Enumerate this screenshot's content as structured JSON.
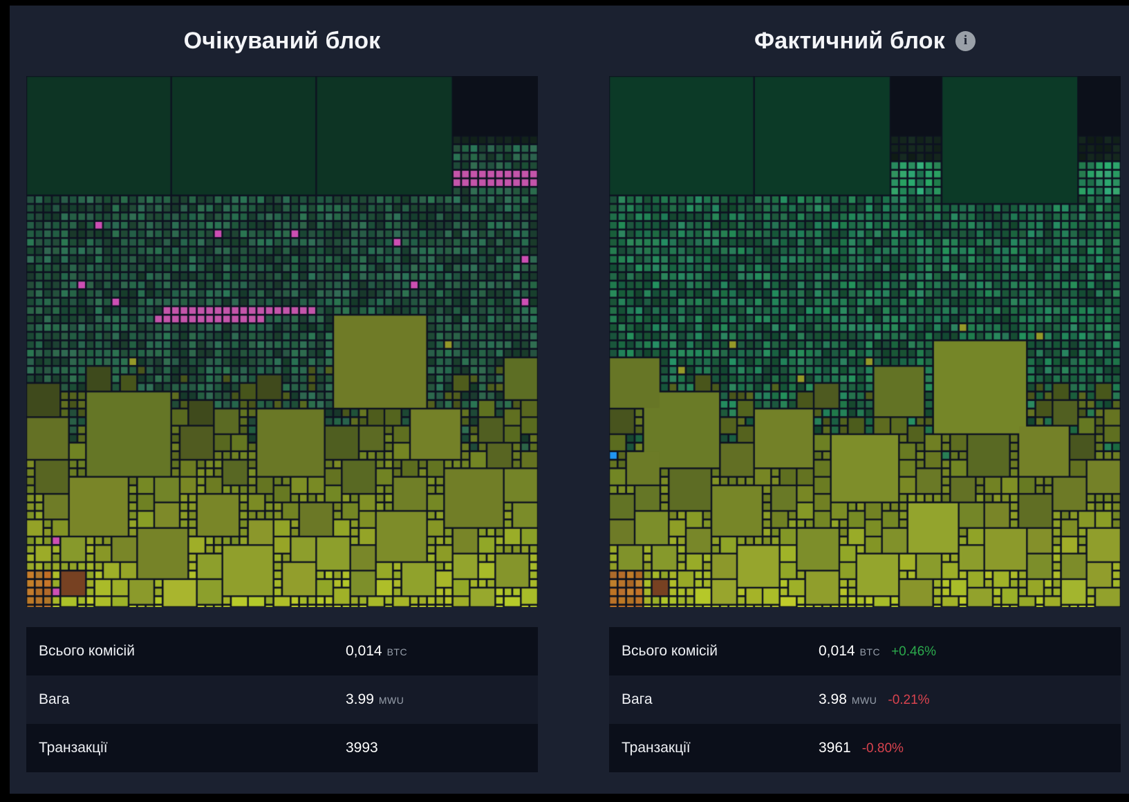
{
  "page": {
    "outer_bg": "#000000",
    "panel_bg": "#1b2130"
  },
  "columns": [
    {
      "title": "Очікуваний блок",
      "show_info_icon": false,
      "stats": [
        {
          "label": "Всього комісій",
          "value": "0,014",
          "unit": "BTC",
          "delta": "",
          "delta_color": ""
        },
        {
          "label": "Вага",
          "value": "3.99",
          "unit": "MWU",
          "delta": "",
          "delta_color": ""
        },
        {
          "label": "Транзакції",
          "value": "3993",
          "unit": "",
          "delta": "",
          "delta_color": ""
        }
      ],
      "treemap": {
        "seed": 1337,
        "gap_color": "#0d1220",
        "black_color": "#0c101a",
        "big_block_color": "#0d3424",
        "pink": "#c455aa",
        "accent_color": "#cd4fb4",
        "accent_p": 0.007,
        "teal": {
          "h": 153,
          "s": 42,
          "l_min": 15,
          "l_var": 17
        },
        "bands": {
          "teal_start": 14,
          "trans_start": 34,
          "olive_start": 45
        },
        "top": {
          "blocks": [
            {
              "c": 0,
              "r": 0,
              "cw": 17,
              "rh": 14
            },
            {
              "c": 17,
              "r": 0,
              "cw": 17,
              "rh": 14
            },
            {
              "c": 34,
              "r": 0,
              "cw": 16,
              "rh": 14
            }
          ],
          "black": [
            {
              "c": 50,
              "r": 0,
              "cw": 10,
              "rh": 7
            }
          ],
          "zones": [
            {
              "c": 50,
              "r": 7,
              "cw": 10,
              "rh": 7,
              "dim": 1,
              "bright": false,
              "pink_rows": [
                11,
                12
              ]
            }
          ]
        },
        "olive_blocks": [
          [
            36,
            28,
            11,
            0.45
          ],
          [
            7,
            37,
            10,
            0.4
          ],
          [
            27,
            39,
            8,
            0.42
          ],
          [
            45,
            39,
            6,
            0.5
          ],
          [
            56,
            33,
            5,
            0.33
          ],
          [
            0,
            40,
            5,
            0.36
          ],
          [
            49,
            46,
            7,
            0.48
          ],
          [
            20,
            49,
            5,
            0.55
          ],
          [
            41,
            51,
            6,
            0.6
          ],
          [
            13,
            53,
            6,
            0.52
          ],
          [
            57,
            50,
            3,
            0.6
          ],
          [
            30,
            57,
            4,
            0.75
          ],
          [
            55,
            56,
            4,
            0.68
          ]
        ],
        "pink_runs": [
          {
            "c": 16,
            "r": 27,
            "len": 18
          },
          {
            "c": 15,
            "r": 28,
            "len": 13
          }
        ],
        "teal_singles": [
          [
            8,
            17
          ],
          [
            22,
            18
          ],
          [
            31,
            18
          ],
          [
            43,
            19
          ],
          [
            58,
            21
          ],
          [
            6,
            24
          ],
          [
            45,
            24
          ],
          [
            10,
            26
          ],
          [
            58,
            26
          ]
        ],
        "teal_singles_color": "#cd4fb4",
        "yellow_singles": [
          [
            49,
            31
          ],
          [
            12,
            33
          ],
          [
            39,
            35
          ],
          [
            57,
            36
          ]
        ],
        "orange": {
          "cells": {
            "c0": 0,
            "c1": 2,
            "r0": 58,
            "r1": 62
          },
          "brown": {
            "c": 4,
            "r": 58,
            "n": 3
          }
        }
      }
    },
    {
      "title": "Фактичний блок",
      "show_info_icon": true,
      "info_icon_glyph": "i",
      "stats": [
        {
          "label": "Всього комісій",
          "value": "0,014",
          "unit": "BTC",
          "delta": "+0.46%",
          "delta_color": "#2ba94c"
        },
        {
          "label": "Вага",
          "value": "3.98",
          "unit": "MWU",
          "delta": "-0.21%",
          "delta_color": "#d9434e"
        },
        {
          "label": "Транзакції",
          "value": "3961",
          "unit": "",
          "delta": "-0.80%",
          "delta_color": "#d9434e"
        }
      ],
      "treemap": {
        "seed": 4242,
        "gap_color": "#0d1220",
        "black_color": "#0c101a",
        "big_block_color": "#0c3a27",
        "pink": "#c455aa",
        "accent_color": "#2196f3",
        "accent_p": 0.016,
        "teal": {
          "h": 152,
          "s": 55,
          "l_min": 17,
          "l_var": 19
        },
        "bands": {
          "teal_start": 14,
          "trans_start": 35,
          "olive_start": 46
        },
        "top": {
          "blocks": [
            {
              "c": 0,
              "r": 0,
              "cw": 17,
              "rh": 14
            },
            {
              "c": 17,
              "r": 0,
              "cw": 16,
              "rh": 14
            },
            {
              "c": 39,
              "r": 0,
              "cw": 16,
              "rh": 15
            }
          ],
          "black": [
            {
              "c": 33,
              "r": 0,
              "cw": 6,
              "rh": 7
            },
            {
              "c": 55,
              "r": 0,
              "cw": 5,
              "rh": 7
            }
          ],
          "zones": [
            {
              "c": 33,
              "r": 7,
              "cw": 6,
              "rh": 7,
              "dim": 3,
              "bright": true,
              "pink_rows": []
            },
            {
              "c": 55,
              "r": 7,
              "cw": 5,
              "rh": 7,
              "dim": 3,
              "bright": true,
              "pink_rows": []
            }
          ]
        },
        "olive_blocks": [
          [
            38,
            31,
            11,
            0.55
          ],
          [
            4,
            37,
            9,
            0.45
          ],
          [
            17,
            39,
            7,
            0.5
          ],
          [
            31,
            34,
            6,
            0.38
          ],
          [
            26,
            42,
            8,
            0.62
          ],
          [
            0,
            33,
            6,
            0.4
          ],
          [
            48,
            41,
            6,
            0.5
          ],
          [
            12,
            48,
            6,
            0.55
          ],
          [
            56,
            45,
            4,
            0.5
          ],
          [
            22,
            53,
            5,
            0.62
          ],
          [
            44,
            53,
            5,
            0.72
          ],
          [
            2,
            44,
            4,
            0.45
          ],
          [
            56,
            53,
            4,
            0.75
          ],
          [
            35,
            50,
            6,
            0.8
          ]
        ],
        "pink_runs": [],
        "teal_singles": [],
        "teal_singles_color": "#cd4fb4",
        "yellow_singles": [
          [
            14,
            31
          ],
          [
            30,
            33
          ],
          [
            50,
            30
          ],
          [
            8,
            34
          ],
          [
            41,
            29
          ],
          [
            22,
            35
          ]
        ],
        "orange": {
          "cells": {
            "c0": 0,
            "c1": 3,
            "r0": 58,
            "r1": 62
          },
          "brown": {
            "c": 5,
            "r": 59,
            "n": 2
          }
        }
      }
    }
  ]
}
